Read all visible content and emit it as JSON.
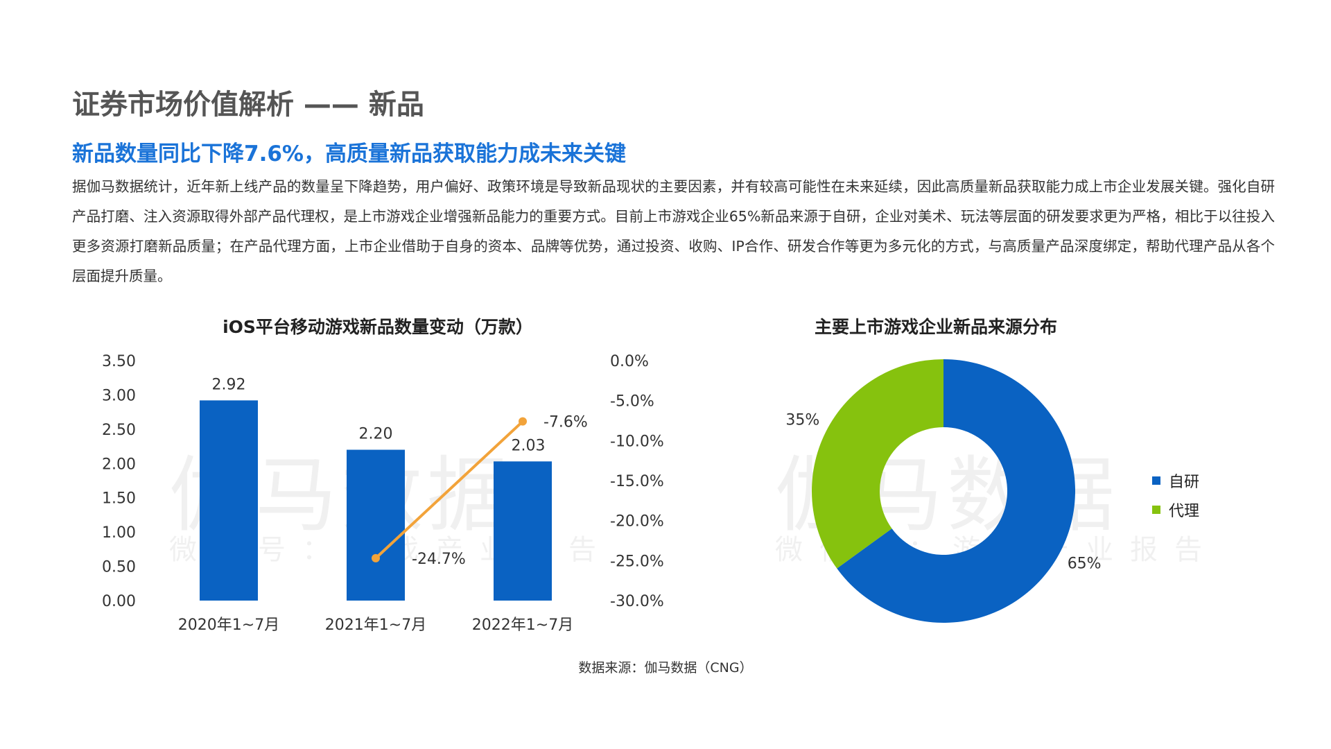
{
  "header": {
    "title": "证券市场价值解析 —— 新品",
    "subtitle": "新品数量同比下降7.6%，高质量新品获取能力成未来关键",
    "body": "据伽马数据统计，近年新上线产品的数量呈下降趋势，用户偏好、政策环境是导致新品现状的主要因素，并有较高可能性在未来延续，因此高质量新品获取能力成上市企业发展关键。强化自研产品打磨、注入资源取得外部产品代理权，是上市游戏企业增强新品能力的重要方式。目前上市游戏企业65%新品来源于自研，企业对美术、玩法等层面的研发要求更为严格，相比于以往投入更多资源打磨新品质量；在产品代理方面，上市企业借助于自身的资本、品牌等优势，通过投资、收购、IP合作、研发合作等更为多元化的方式，与高质量产品深度绑定，帮助代理产品从各个层面提升质量。"
  },
  "watermark": {
    "big": "伽马数据",
    "small": "微信号：游戏产业报告"
  },
  "source": "数据来源：伽马数据（CNG）",
  "colors": {
    "blue": "#0a62c2",
    "orange": "#f2a33a",
    "green": "#86c20e",
    "accent": "#1a73d8"
  },
  "chart_data": [
    {
      "type": "bar",
      "title": "iOS平台移动游戏新品数量变动（万款）",
      "categories": [
        "2020年1~7月",
        "2021年1~7月",
        "2022年1~7月"
      ],
      "series": [
        {
          "values": [
            2.92,
            2.2,
            2.03
          ],
          "labels": [
            "2.92",
            "2.20",
            "2.03"
          ],
          "axis": "left",
          "color": "#0a62c2"
        },
        {
          "type": "line",
          "x": [
            "2021年1~7月",
            "2022年1~7月"
          ],
          "values": [
            -24.7,
            -7.6
          ],
          "labels": [
            "-24.7%",
            "-7.6%"
          ],
          "axis": "right",
          "color": "#f2a33a"
        }
      ],
      "ylim": [
        0,
        3.5
      ],
      "yticks": [
        "0.00",
        "0.50",
        "1.00",
        "1.50",
        "2.00",
        "2.50",
        "3.00",
        "3.50"
      ],
      "y2lim": [
        -30,
        0
      ],
      "y2ticks": [
        "-30.0%",
        "-25.0%",
        "-20.0%",
        "-15.0%",
        "-10.0%",
        "-5.0%",
        "0.0%"
      ],
      "grid": false
    },
    {
      "type": "pie",
      "title": "主要上市游戏企业新品来源分布",
      "donut": true,
      "slices": [
        {
          "name": "自研",
          "value": 65,
          "label": "65%",
          "color": "#0a62c2"
        },
        {
          "name": "代理",
          "value": 35,
          "label": "35%",
          "color": "#86c20e"
        }
      ],
      "legend": "right"
    }
  ]
}
